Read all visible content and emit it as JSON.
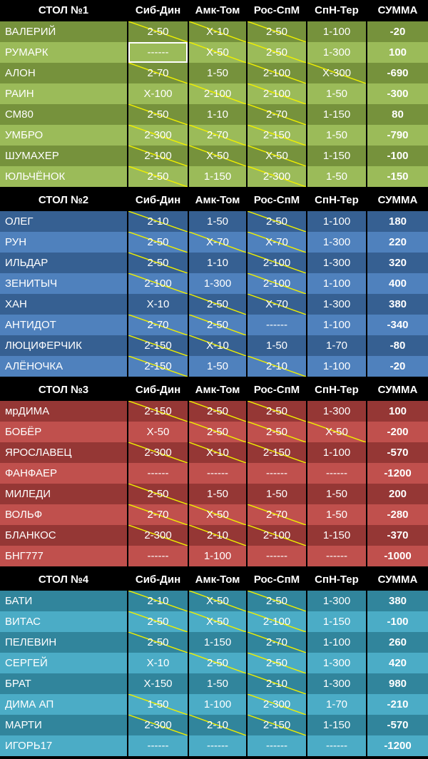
{
  "headers": [
    "Сиб-Дин",
    "Амк-Том",
    "Рос-СпМ",
    "СпН-Тер",
    "СУММА"
  ],
  "colors": {
    "strike": "#f0f000",
    "tables": [
      {
        "dark": "#76923c",
        "light": "#9bbb59"
      },
      {
        "dark": "#366092",
        "light": "#4f81bd"
      },
      {
        "dark": "#953735",
        "light": "#c0504d"
      },
      {
        "dark": "#31859c",
        "light": "#4bacc6"
      }
    ]
  },
  "tables": [
    {
      "title": "СТОЛ №1",
      "rows": [
        {
          "name": "ВАЛЕРИЙ",
          "picks": [
            "2-50",
            "Х-10",
            "2-50",
            "1-100"
          ],
          "sum": "-20",
          "struck": [
            1,
            1,
            1,
            0
          ]
        },
        {
          "name": "РУМАРК",
          "picks": [
            "------",
            "Х-50",
            "2-50",
            "1-300"
          ],
          "sum": "100",
          "struck": [
            0,
            1,
            1,
            0
          ],
          "selected": 0
        },
        {
          "name": "АЛОН",
          "picks": [
            "2-70",
            "1-50",
            "2-100",
            "Х-300"
          ],
          "sum": "-690",
          "struck": [
            1,
            0,
            1,
            1
          ]
        },
        {
          "name": "РАИН",
          "picks": [
            "Х-100",
            "2-100",
            "2-100",
            "1-50"
          ],
          "sum": "-300",
          "struck": [
            0,
            1,
            1,
            0
          ]
        },
        {
          "name": "СМ80",
          "picks": [
            "2-50",
            "1-10",
            "2-70",
            "1-150"
          ],
          "sum": "80",
          "struck": [
            1,
            0,
            1,
            0
          ]
        },
        {
          "name": "УМБРО",
          "picks": [
            "2-300",
            "2-70",
            "2-150",
            "1-50"
          ],
          "sum": "-790",
          "struck": [
            1,
            1,
            1,
            0
          ]
        },
        {
          "name": "ШУМАХЕР",
          "picks": [
            "2-100",
            "Х-50",
            "Х-50",
            "1-150"
          ],
          "sum": "-100",
          "struck": [
            1,
            1,
            1,
            0
          ]
        },
        {
          "name": "ЮЛЬЧЁНОК",
          "picks": [
            "2-50",
            "1-150",
            "2-300",
            "1-50"
          ],
          "sum": "-150",
          "struck": [
            1,
            0,
            1,
            0
          ]
        }
      ]
    },
    {
      "title": "СТОЛ №2",
      "rows": [
        {
          "name": "ОЛЕГ",
          "picks": [
            "2-10",
            "1-50",
            "2-50",
            "1-100"
          ],
          "sum": "180",
          "struck": [
            1,
            0,
            1,
            0
          ]
        },
        {
          "name": "РУН",
          "picks": [
            "2-50",
            "Х-70",
            "Х-70",
            "1-300"
          ],
          "sum": "220",
          "struck": [
            1,
            1,
            1,
            0
          ]
        },
        {
          "name": "ИЛЬДАР",
          "picks": [
            "2-50",
            "1-10",
            "2-100",
            "1-300"
          ],
          "sum": "320",
          "struck": [
            1,
            0,
            1,
            0
          ]
        },
        {
          "name": "ЗЕНИТЫЧ",
          "picks": [
            "2-100",
            "1-300",
            "2-100",
            "1-100"
          ],
          "sum": "400",
          "struck": [
            1,
            0,
            1,
            0
          ]
        },
        {
          "name": "ХАН",
          "picks": [
            "Х-10",
            "2-50",
            "Х-70",
            "1-300"
          ],
          "sum": "380",
          "struck": [
            0,
            1,
            1,
            0
          ]
        },
        {
          "name": "АНТИДОТ",
          "picks": [
            "2-70",
            "2-50",
            "------",
            "1-100"
          ],
          "sum": "-340",
          "struck": [
            1,
            1,
            0,
            0
          ]
        },
        {
          "name": "ЛЮЦИФЕРЧИК",
          "picks": [
            "2-150",
            "Х-10",
            "1-50",
            "1-70"
          ],
          "sum": "-80",
          "struck": [
            1,
            1,
            0,
            0
          ]
        },
        {
          "name": "АЛЁНОЧКА",
          "picks": [
            "2-150",
            "1-50",
            "2-10",
            "1-100"
          ],
          "sum": "-20",
          "struck": [
            1,
            0,
            1,
            0
          ]
        }
      ]
    },
    {
      "title": "СТОЛ №3",
      "rows": [
        {
          "name": "мрДИМА",
          "picks": [
            "2-150",
            "2-50",
            "2-50",
            "1-300"
          ],
          "sum": "100",
          "struck": [
            1,
            1,
            1,
            0
          ]
        },
        {
          "name": "БОБЁР",
          "picks": [
            "Х-50",
            "2-50",
            "2-50",
            "Х-50"
          ],
          "sum": "-200",
          "struck": [
            0,
            1,
            1,
            1
          ]
        },
        {
          "name": "ЯРОСЛАВЕЦ",
          "picks": [
            "2-300",
            "Х-10",
            "2-150",
            "1-100"
          ],
          "sum": "-570",
          "struck": [
            1,
            1,
            1,
            0
          ]
        },
        {
          "name": "ФАНФАЕР",
          "picks": [
            "------",
            "------",
            "------",
            "------"
          ],
          "sum": "-1200",
          "struck": [
            0,
            0,
            0,
            0
          ]
        },
        {
          "name": "МИЛЕДИ",
          "picks": [
            "2-50",
            "1-50",
            "1-50",
            "1-50"
          ],
          "sum": "200",
          "struck": [
            1,
            0,
            0,
            0
          ]
        },
        {
          "name": "ВОЛЬФ",
          "picks": [
            "2-70",
            "Х-50",
            "2-70",
            "1-50"
          ],
          "sum": "-280",
          "struck": [
            1,
            1,
            1,
            0
          ]
        },
        {
          "name": "БЛАНКОС",
          "picks": [
            "2-300",
            "2-10",
            "2-100",
            "1-150"
          ],
          "sum": "-370",
          "struck": [
            1,
            1,
            1,
            0
          ]
        },
        {
          "name": "БНГ777",
          "picks": [
            "------",
            "1-100",
            "------",
            "------"
          ],
          "sum": "-1000",
          "struck": [
            0,
            0,
            0,
            0
          ]
        }
      ]
    },
    {
      "title": "СТОЛ №4",
      "rows": [
        {
          "name": "БАТИ",
          "picks": [
            "2-10",
            "Х-50",
            "2-50",
            "1-300"
          ],
          "sum": "380",
          "struck": [
            1,
            1,
            1,
            0
          ]
        },
        {
          "name": "ВИТАС",
          "picks": [
            "2-50",
            "Х-50",
            "2-100",
            "1-150"
          ],
          "sum": "-100",
          "struck": [
            1,
            1,
            1,
            0
          ]
        },
        {
          "name": "ПЕЛЕВИН",
          "picks": [
            "2-50",
            "1-150",
            "2-70",
            "1-100"
          ],
          "sum": "260",
          "struck": [
            1,
            0,
            1,
            0
          ]
        },
        {
          "name": "СЕРГЕЙ",
          "picks": [
            "Х-10",
            "2-50",
            "2-50",
            "1-300"
          ],
          "sum": "420",
          "struck": [
            0,
            1,
            1,
            0
          ]
        },
        {
          "name": "БРАТ",
          "picks": [
            "Х-150",
            "1-50",
            "2-10",
            "1-300"
          ],
          "sum": "980",
          "struck": [
            0,
            0,
            1,
            0
          ]
        },
        {
          "name": "ДИМА АП",
          "picks": [
            "1-50",
            "1-100",
            "2-300",
            "1-70"
          ],
          "sum": "-210",
          "struck": [
            1,
            0,
            1,
            0
          ]
        },
        {
          "name": "МАРТИ",
          "picks": [
            "2-300",
            "2-10",
            "2-150",
            "1-150"
          ],
          "sum": "-570",
          "struck": [
            1,
            1,
            1,
            0
          ]
        },
        {
          "name": "ИГОРЬ17",
          "picks": [
            "------",
            "------",
            "------",
            "------"
          ],
          "sum": "-1200",
          "struck": [
            0,
            0,
            0,
            0
          ]
        }
      ]
    }
  ]
}
